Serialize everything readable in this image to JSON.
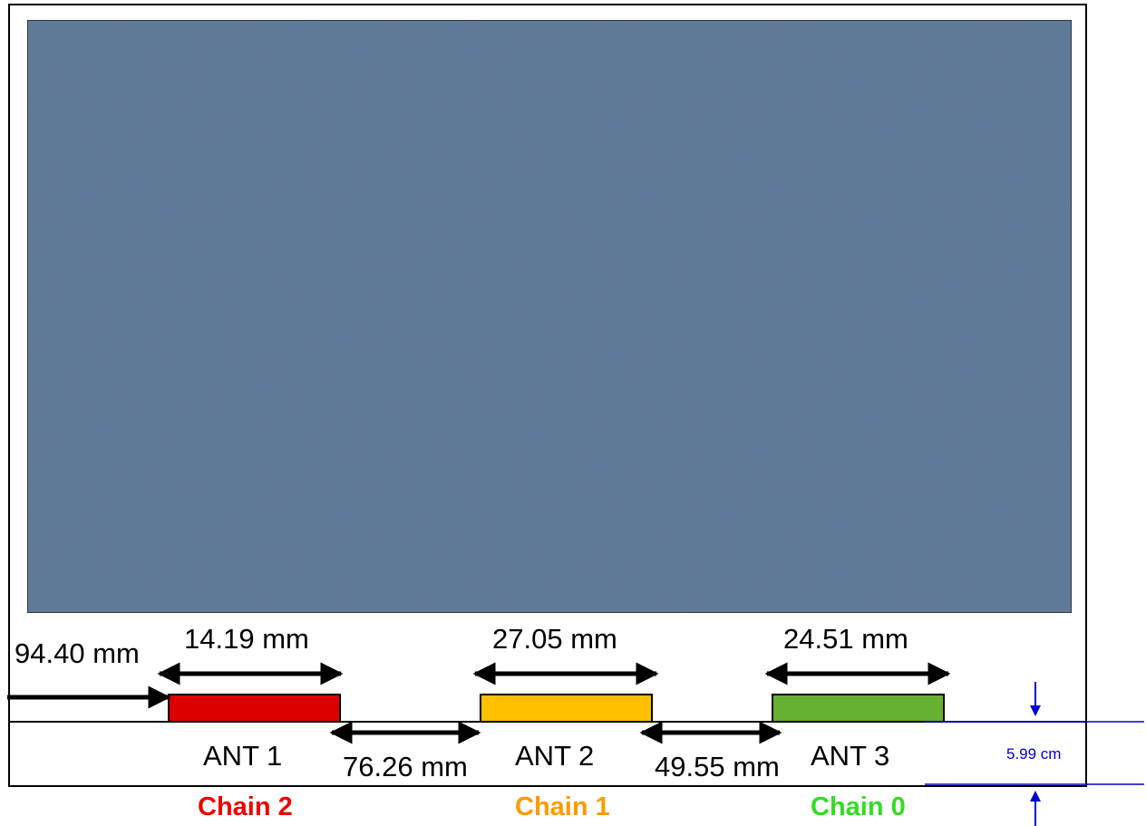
{
  "colors": {
    "screen": "#5f7a98",
    "frame": "#000000",
    "ant1": "#dd0000",
    "ant2": "#ffc000",
    "ant3": "#66b032",
    "chain2": "#ee0000",
    "chain1": "#ff9900",
    "chain0": "#33dd22",
    "bezel_dimension": "#0000cc"
  },
  "dimensions": {
    "left_margin": "94.40 mm",
    "ant1_width": "14.19 mm",
    "gap_ant1_ant2": "76.26 mm",
    "ant2_width": "27.05 mm",
    "gap_ant2_ant3": "49.55 mm",
    "ant3_width": "24.51 mm",
    "bezel_height": "5.99 cm"
  },
  "antennas": [
    {
      "label": "ANT 1",
      "chain": "Chain 2"
    },
    {
      "label": "ANT 2",
      "chain": "Chain 1"
    },
    {
      "label": "ANT 3",
      "chain": "Chain 0"
    }
  ]
}
